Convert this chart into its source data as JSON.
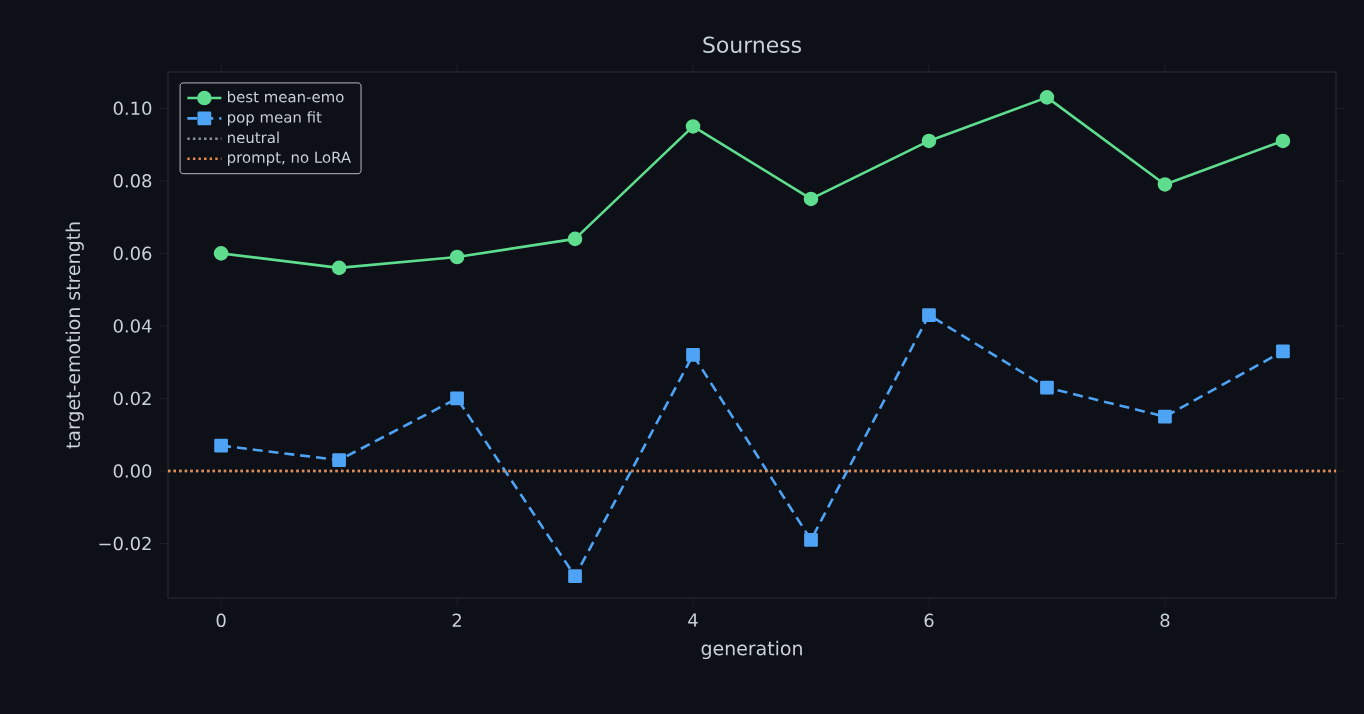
{
  "chart_data": {
    "type": "line",
    "title": "Sourness",
    "xlabel": "generation",
    "ylabel": "target-emotion strength",
    "x": [
      0,
      1,
      2,
      3,
      4,
      5,
      6,
      7,
      8,
      9
    ],
    "series": [
      {
        "name": "best mean-emo",
        "color": "#5fdd8f",
        "marker": "circle",
        "line_style": "solid",
        "values": [
          0.06,
          0.056,
          0.059,
          0.064,
          0.095,
          0.075,
          0.091,
          0.103,
          0.079,
          0.091
        ]
      },
      {
        "name": "pop mean fit",
        "color": "#4ea3f5",
        "marker": "square",
        "line_style": "dashed",
        "values": [
          0.007,
          0.003,
          0.02,
          -0.029,
          0.032,
          -0.019,
          0.043,
          0.023,
          0.015,
          0.033
        ]
      }
    ],
    "ref_lines": [
      {
        "axis": "y",
        "value": 0,
        "label": "neutral",
        "color": "#8b949e",
        "line_style": "dotted"
      },
      {
        "axis": "y",
        "value": 0,
        "label": "prompt, no LoRA",
        "color": "#e8884a",
        "line_style": "dotted"
      }
    ],
    "xlim": [
      -0.45,
      9.45
    ],
    "ylim": [
      -0.035,
      0.11
    ],
    "xticks": [
      0,
      2,
      4,
      6,
      8
    ],
    "yticks": [
      {
        "value": -0.02,
        "label": "−0.02"
      },
      {
        "value": 0,
        "label": "0.00"
      },
      {
        "value": 0.02,
        "label": "0.02"
      },
      {
        "value": 0.04,
        "label": "0.04"
      },
      {
        "value": 0.06,
        "label": "0.06"
      },
      {
        "value": 0.08,
        "label": "0.08"
      },
      {
        "value": 0.1,
        "label": "0.10"
      }
    ],
    "legend": "top left"
  }
}
